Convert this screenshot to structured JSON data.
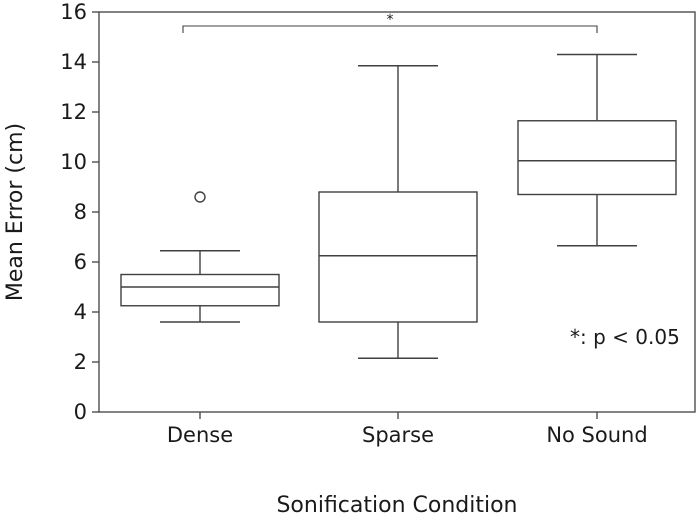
{
  "chart_data": {
    "type": "box",
    "xlabel": "Sonification Condition",
    "ylabel": "Mean Error (cm)",
    "ylim": [
      0,
      16
    ],
    "yticks": [
      0,
      2,
      4,
      6,
      8,
      10,
      12,
      14,
      16
    ],
    "grid": false,
    "categories": [
      "Dense",
      "Sparse",
      "No Sound"
    ],
    "boxes": [
      {
        "category": "Dense",
        "whisker_low": 3.6,
        "q1": 4.25,
        "median": 5.0,
        "q3": 5.5,
        "whisker_high": 6.45,
        "outliers": [
          8.6
        ]
      },
      {
        "category": "Sparse",
        "whisker_low": 2.15,
        "q1": 3.6,
        "median": 6.25,
        "q3": 8.8,
        "whisker_high": 13.85,
        "outliers": []
      },
      {
        "category": "No Sound",
        "whisker_low": 6.65,
        "q1": 8.7,
        "median": 10.05,
        "q3": 11.65,
        "whisker_high": 14.3,
        "outliers": []
      }
    ],
    "significance": {
      "from": "Dense",
      "to": "No Sound",
      "label": "*"
    },
    "annotation": "*: p < 0.05",
    "colors": {
      "line": "#404040",
      "text": "#1a1a1a"
    }
  }
}
